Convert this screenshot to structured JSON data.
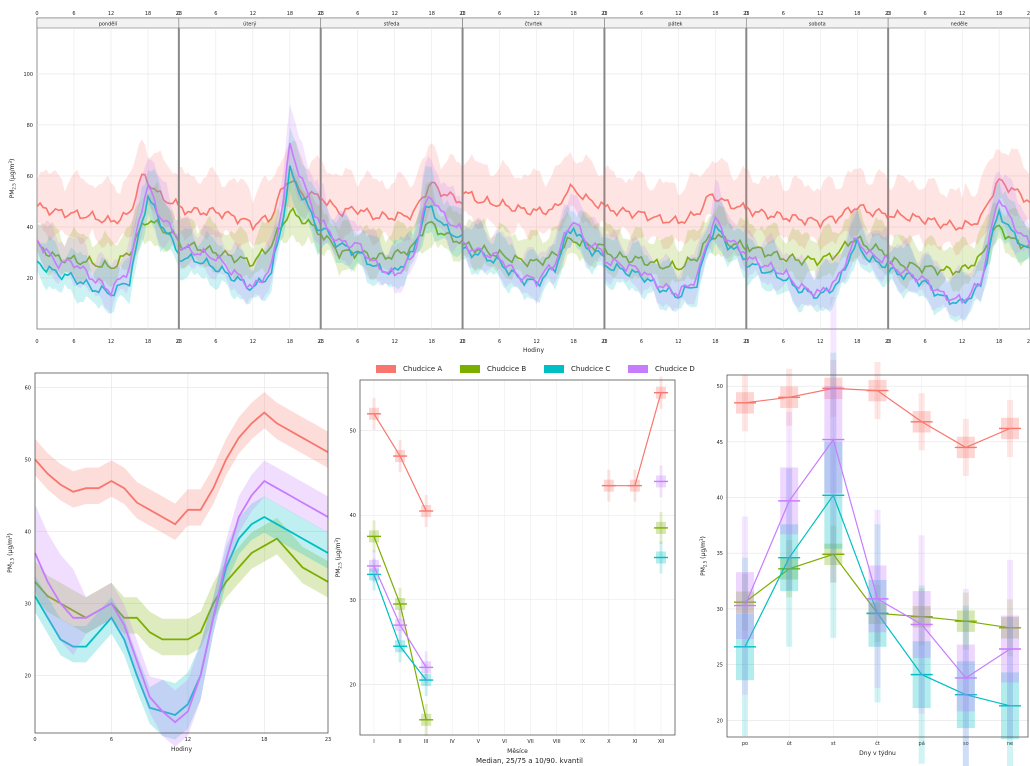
{
  "chart_data": {
    "type": "line",
    "series_names": [
      "Chudcice A",
      "Chudcice B",
      "Chudcice C",
      "Chudcice D"
    ],
    "colors": [
      "#f8766d",
      "#7cae00",
      "#00bfc4",
      "#c77cff"
    ],
    "footnote": "Median, 25/75 a 10/90. kvantil",
    "weekly": {
      "title_days": [
        "pondělí",
        "úterý",
        "středa",
        "čtvrtek",
        "pátek",
        "sobota",
        "neděle"
      ],
      "xlabel": "Hodiny",
      "ylabel": "PM2.5 (µg/m3)",
      "x_ticks": [
        "0",
        "6",
        "12",
        "18",
        "23"
      ],
      "ylim": [
        0,
        118
      ],
      "y_ticks": [
        20,
        40,
        60,
        80,
        100
      ],
      "hour_knots": [
        0,
        3,
        6,
        9,
        12,
        15,
        17,
        18,
        20,
        23
      ],
      "days": [
        {
          "A": [
            48,
            46,
            45,
            44,
            42,
            45,
            60,
            58,
            52,
            48
          ],
          "B": [
            33,
            28,
            27,
            26,
            24,
            30,
            40,
            43,
            40,
            35
          ],
          "C": [
            26,
            22,
            20,
            16,
            14,
            19,
            42,
            52,
            42,
            30
          ],
          "D": [
            35,
            26,
            26,
            20,
            15,
            24,
            48,
            56,
            44,
            36
          ]
        },
        {
          "A": [
            47,
            46,
            46,
            44,
            41,
            44,
            56,
            59,
            53,
            52
          ],
          "B": [
            33,
            32,
            30,
            28,
            26,
            33,
            42,
            46,
            43,
            38
          ],
          "C": [
            28,
            27,
            24,
            20,
            16,
            22,
            45,
            62,
            52,
            38
          ],
          "D": [
            32,
            30,
            28,
            22,
            16,
            24,
            52,
            72,
            58,
            40
          ]
        },
        {
          "A": [
            52,
            46,
            47,
            44,
            44,
            45,
            54,
            57,
            53,
            50
          ],
          "B": [
            38,
            30,
            30,
            28,
            29,
            32,
            41,
            41,
            37,
            34
          ],
          "C": [
            40,
            33,
            30,
            24,
            22,
            30,
            47,
            47,
            40,
            35
          ],
          "D": [
            42,
            34,
            33,
            25,
            21,
            28,
            49,
            52,
            44,
            38
          ]
        },
        {
          "A": [
            54,
            50,
            49,
            47,
            46,
            47,
            54,
            55,
            51,
            48
          ],
          "B": [
            33,
            31,
            29,
            27,
            26,
            29,
            34,
            35,
            33,
            32
          ],
          "C": [
            31,
            29,
            26,
            20,
            18,
            24,
            37,
            40,
            32,
            28
          ],
          "D": [
            33,
            30,
            28,
            21,
            19,
            26,
            39,
            43,
            34,
            30
          ]
        },
        {
          "A": [
            47,
            46,
            45,
            43,
            42,
            45,
            52,
            52,
            49,
            47
          ],
          "B": [
            30,
            28,
            27,
            25,
            24,
            28,
            36,
            37,
            34,
            32
          ],
          "C": [
            25,
            23,
            21,
            16,
            13,
            18,
            35,
            40,
            33,
            28
          ],
          "D": [
            27,
            25,
            23,
            17,
            14,
            20,
            37,
            43,
            35,
            30
          ]
        },
        {
          "A": [
            47,
            45,
            44,
            43,
            42,
            44,
            47,
            48,
            46,
            45
          ],
          "B": [
            33,
            30,
            28,
            27,
            27,
            30,
            35,
            35,
            32,
            30
          ],
          "C": [
            26,
            23,
            20,
            15,
            13,
            18,
            30,
            33,
            27,
            25
          ],
          "D": [
            28,
            25,
            22,
            16,
            14,
            20,
            32,
            35,
            29,
            27
          ]
        },
        {
          "A": [
            45,
            44,
            43,
            41,
            40,
            43,
            54,
            58,
            55,
            50
          ],
          "B": [
            27,
            25,
            24,
            23,
            23,
            28,
            38,
            40,
            35,
            32
          ],
          "C": [
            23,
            21,
            18,
            12,
            10,
            17,
            38,
            46,
            38,
            30
          ],
          "D": [
            25,
            22,
            19,
            13,
            11,
            18,
            42,
            52,
            42,
            33
          ]
        }
      ]
    },
    "hourly": {
      "xlabel": "Hodiny",
      "ylabel": "PM2.5 (µg/m3)",
      "x_ticks": [
        0,
        6,
        12,
        18,
        23
      ],
      "xlim": [
        0,
        23
      ],
      "ylim": [
        12,
        62
      ],
      "y_ticks": [
        20,
        30,
        40,
        50,
        60
      ],
      "x": [
        0,
        1,
        2,
        3,
        4,
        5,
        6,
        7,
        8,
        9,
        10,
        11,
        12,
        13,
        14,
        15,
        16,
        17,
        18,
        19,
        20,
        21,
        22,
        23
      ],
      "series": [
        {
          "name": "Chudcice A",
          "values": [
            50,
            48,
            46.5,
            45.5,
            46,
            46,
            47,
            46,
            44,
            43,
            42,
            41,
            43,
            43,
            46,
            50,
            53,
            55,
            56.5,
            55,
            54,
            53,
            52,
            51
          ]
        },
        {
          "name": "Chudcice B",
          "values": [
            33,
            31,
            30,
            29,
            28,
            29,
            30,
            28,
            28,
            26,
            25,
            25,
            25,
            26,
            30,
            33,
            35,
            37,
            38,
            39,
            37,
            35,
            34,
            33
          ]
        },
        {
          "name": "Chudcice C",
          "values": [
            31,
            28,
            25,
            24,
            24,
            26,
            28,
            25,
            20,
            15.5,
            15,
            14.5,
            16,
            20,
            28,
            35,
            39,
            41,
            42,
            41,
            40,
            39,
            38,
            37
          ]
        },
        {
          "name": "Chudcice D",
          "values": [
            37,
            33,
            30,
            28,
            28,
            29,
            30,
            27,
            22,
            17,
            15,
            13.5,
            15,
            20,
            28,
            36,
            42,
            45,
            47,
            46,
            45,
            44,
            43,
            42
          ]
        }
      ]
    },
    "monthly": {
      "xlabel": "Měsíce",
      "ylabel": "PM2.5 (µg/m3)",
      "categories": [
        "I",
        "II",
        "III",
        "IV",
        "V",
        "VI",
        "VII",
        "VIII",
        "IX",
        "X",
        "XI",
        "XII"
      ],
      "x_tick_labels": [
        "I",
        "II",
        "III",
        "IV",
        "V",
        "VI",
        "VII",
        "VIII",
        "IX",
        "X",
        "XI",
        "XII"
      ],
      "ylim": [
        14,
        56
      ],
      "y_ticks": [
        20,
        30,
        40,
        50
      ],
      "series": [
        {
          "name": "Chudcice A",
          "values": [
            52,
            47,
            40.5,
            null,
            null,
            null,
            null,
            null,
            null,
            43.5,
            43.5,
            54.5
          ]
        },
        {
          "name": "Chudcice B",
          "values": [
            37.5,
            29.5,
            15.8,
            null,
            null,
            null,
            null,
            null,
            null,
            null,
            null,
            38.5
          ]
        },
        {
          "name": "Chudcice C",
          "values": [
            33,
            24.5,
            20.5,
            null,
            null,
            null,
            null,
            null,
            null,
            null,
            null,
            35
          ]
        },
        {
          "name": "Chudcice D",
          "values": [
            34,
            27,
            22,
            null,
            null,
            null,
            null,
            null,
            null,
            null,
            null,
            44
          ]
        }
      ]
    },
    "weekday": {
      "xlabel": "Dny v týdnu",
      "ylabel": "PM2.5 (µg/m3)",
      "categories": [
        "po",
        "út",
        "st",
        "čt",
        "pá",
        "so",
        "ne"
      ],
      "ylim": [
        18.5,
        51
      ],
      "y_ticks": [
        20,
        25,
        30,
        35,
        40,
        45,
        50
      ],
      "series": [
        {
          "name": "Chudcice A",
          "values": [
            48.5,
            49,
            49.8,
            49.6,
            46.8,
            44.5,
            46.2
          ]
        },
        {
          "name": "Chudcice B",
          "values": [
            30.6,
            33.6,
            34.9,
            29.6,
            29.3,
            28.9,
            28.3
          ]
        },
        {
          "name": "Chudcice C",
          "values": [
            26.6,
            34.6,
            40.2,
            29.6,
            24.1,
            22.3,
            21.3
          ]
        },
        {
          "name": "Chudcice D",
          "values": [
            30.3,
            39.7,
            45.2,
            30.9,
            28.6,
            23.8,
            26.4
          ]
        }
      ]
    }
  }
}
